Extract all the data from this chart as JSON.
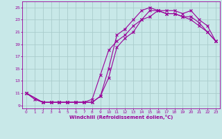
{
  "xlabel": "Windchill (Refroidissement éolien,°C)",
  "bg_color": "#c8e8e8",
  "line_color": "#990099",
  "grid_color": "#aacccc",
  "xlim": [
    -0.5,
    23.5
  ],
  "ylim": [
    8.5,
    26
  ],
  "yticks": [
    9,
    11,
    13,
    15,
    17,
    19,
    21,
    23,
    25
  ],
  "xticks": [
    0,
    1,
    2,
    3,
    4,
    5,
    6,
    7,
    8,
    9,
    10,
    11,
    12,
    13,
    14,
    15,
    16,
    17,
    18,
    19,
    20,
    21,
    22,
    23
  ],
  "line1_x": [
    0,
    1,
    2,
    3,
    4,
    5,
    6,
    7,
    8,
    9,
    10,
    11,
    12,
    13,
    14,
    15,
    16,
    17,
    18,
    19,
    20,
    21,
    22,
    23
  ],
  "line1_y": [
    11,
    10,
    9.5,
    9.5,
    9.5,
    9.5,
    9.5,
    9.5,
    10,
    14,
    18,
    19.5,
    20.5,
    22,
    23,
    23.5,
    24.5,
    24.5,
    24.5,
    24,
    24.5,
    23,
    22,
    19.5
  ],
  "line2_x": [
    0,
    2,
    3,
    4,
    5,
    6,
    7,
    8,
    9,
    10,
    11,
    12,
    13,
    14,
    15,
    16,
    17,
    18,
    19,
    20,
    21,
    22,
    23
  ],
  "line2_y": [
    11,
    9.5,
    9.5,
    9.5,
    9.5,
    9.5,
    9.5,
    9.5,
    10.5,
    15,
    20.5,
    21.5,
    23,
    24.5,
    25,
    24.5,
    24,
    24,
    23.5,
    23,
    22,
    21,
    19.5
  ],
  "line3_x": [
    0,
    2,
    3,
    4,
    5,
    6,
    7,
    8,
    9,
    10,
    11,
    12,
    13,
    14,
    15,
    16,
    17,
    18,
    19,
    20,
    21,
    22,
    23
  ],
  "line3_y": [
    11,
    9.5,
    9.5,
    9.5,
    9.5,
    9.5,
    9.5,
    9.5,
    10.5,
    13.5,
    18.5,
    20,
    21,
    23,
    24.5,
    24.5,
    24,
    24,
    23.5,
    23.5,
    22.5,
    21,
    19.5
  ]
}
